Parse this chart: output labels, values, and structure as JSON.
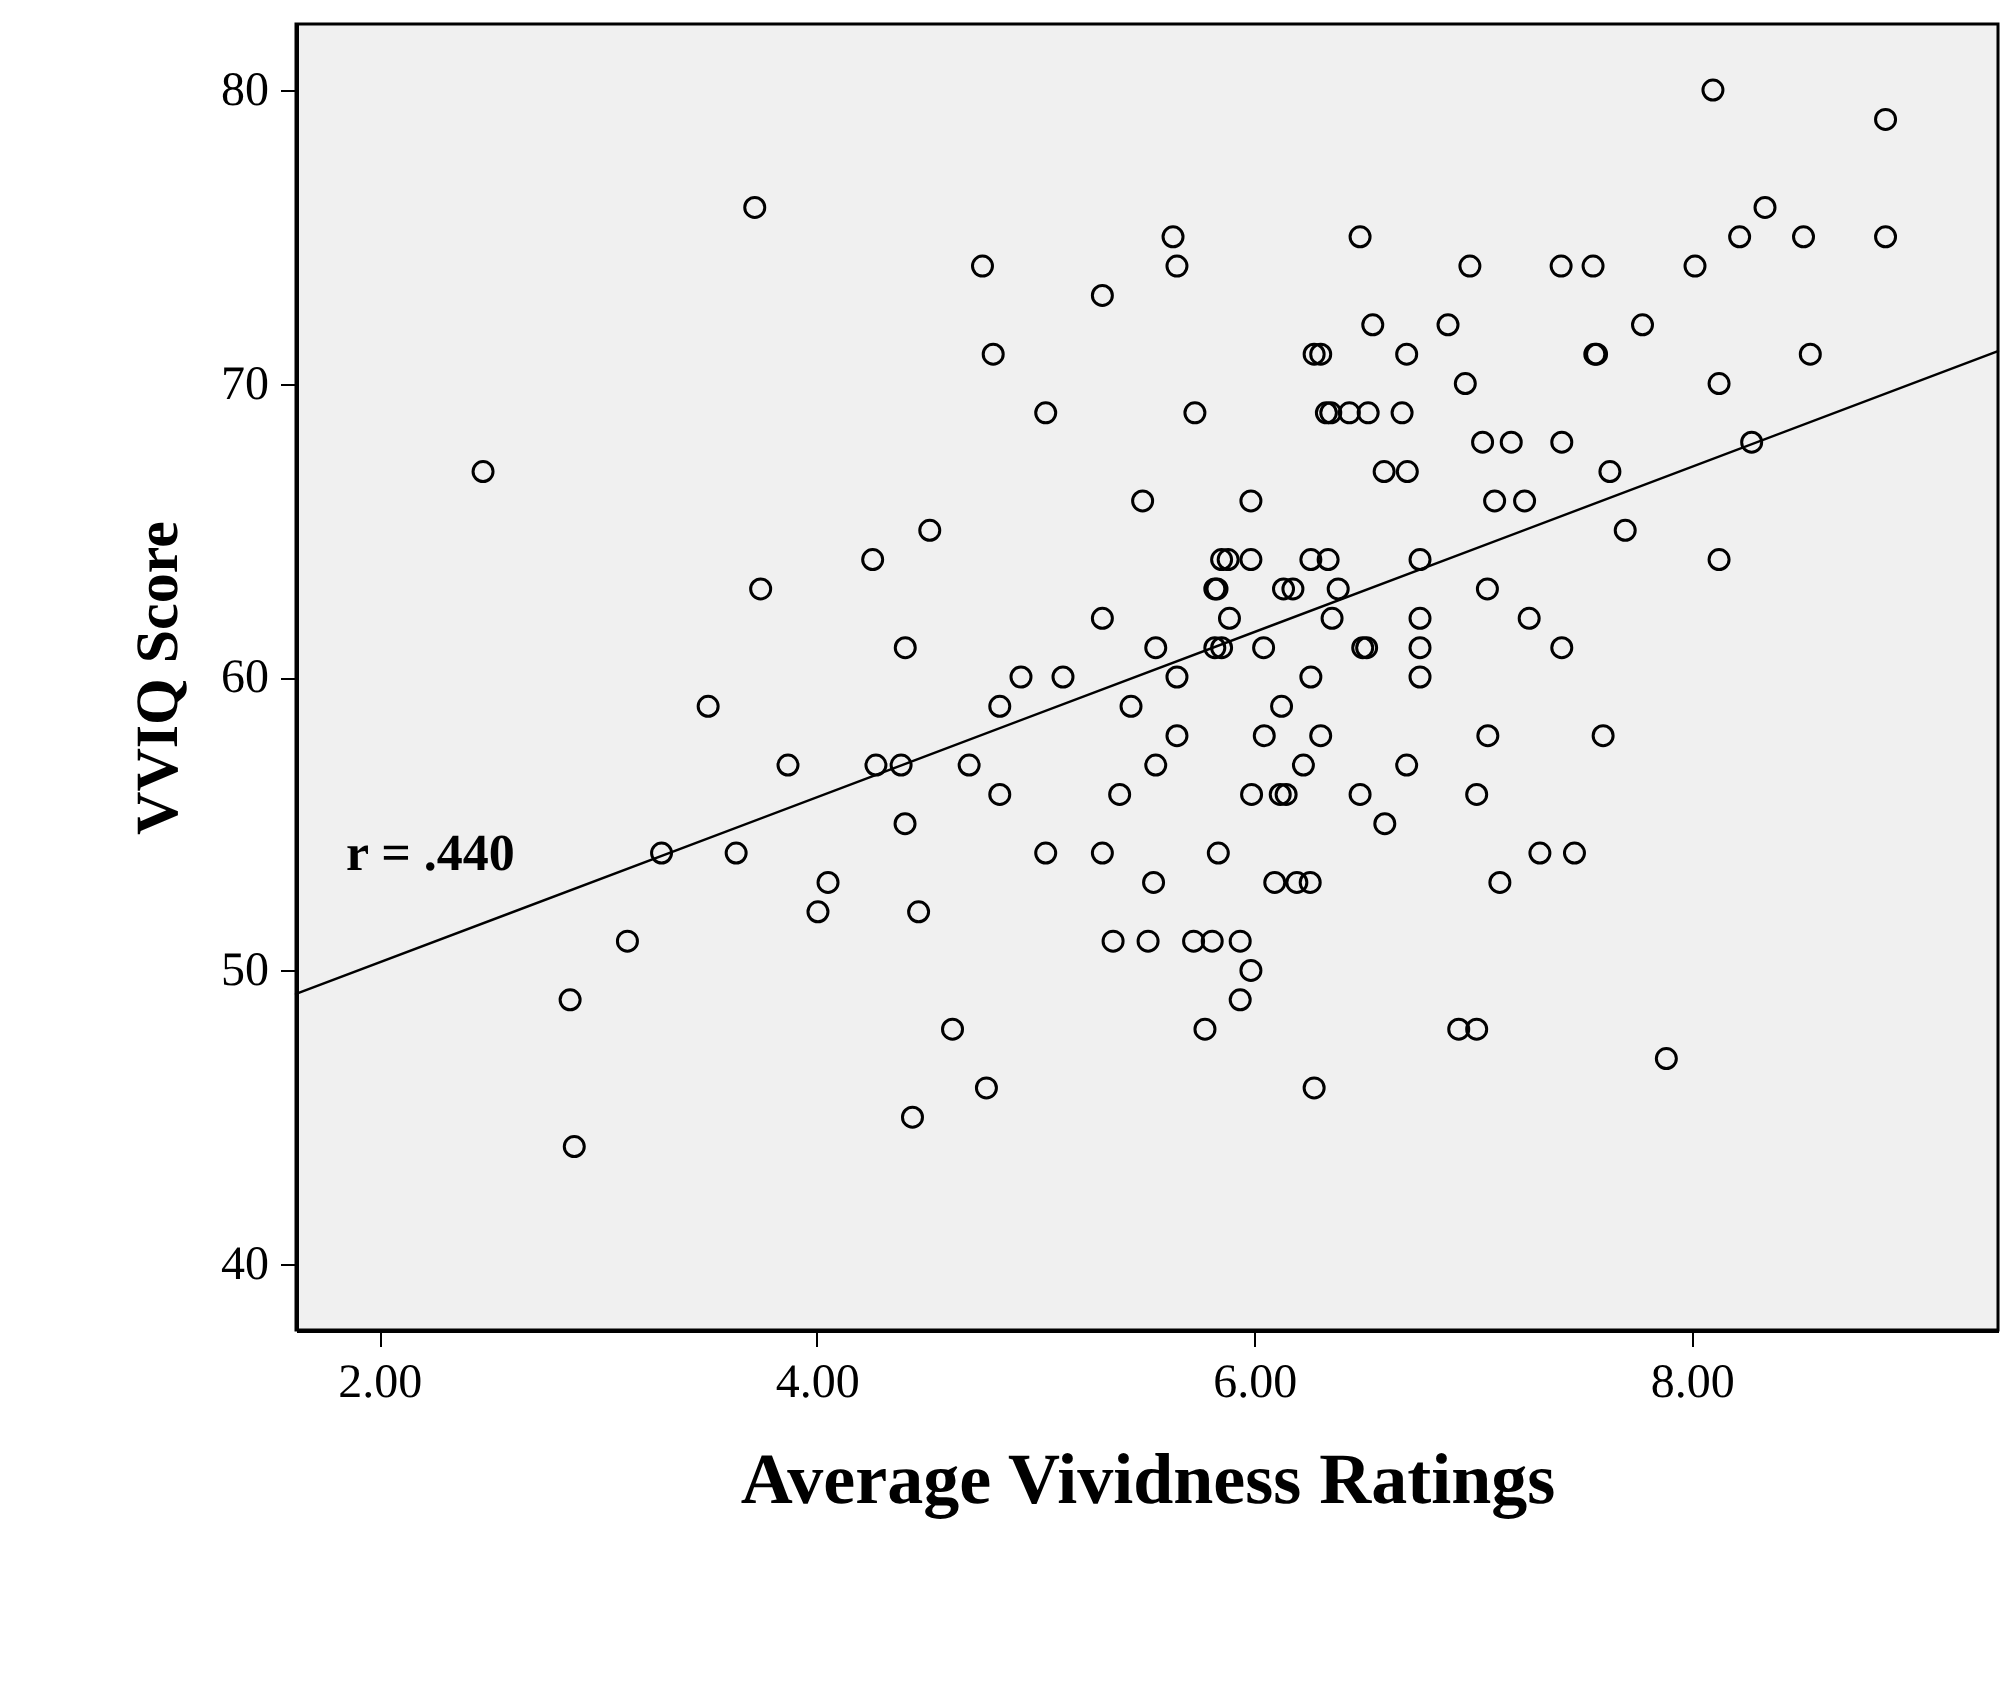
{
  "chart_data": {
    "type": "scatter",
    "xlabel": "Average Vividness Ratings",
    "ylabel": "VVIQ Score",
    "xlim": [
      1.62,
      9.4
    ],
    "ylim": [
      37.75,
      82.25
    ],
    "xticks": [
      {
        "value": 2,
        "label": "2.00"
      },
      {
        "value": 4,
        "label": "4.00"
      },
      {
        "value": 6,
        "label": "6.00"
      },
      {
        "value": 8,
        "label": "8.00"
      }
    ],
    "yticks": [
      40,
      50,
      60,
      70,
      80
    ],
    "grid": false,
    "annotations": [
      "r = .440"
    ],
    "series": [
      {
        "type": "line",
        "color": "#000000",
        "x": [
          1.62,
          9.4
        ],
        "values": [
          49.2,
          71.1
        ]
      },
      {
        "marker": "circle",
        "color": "#000000",
        "x": [
          3.717,
          4.758,
          5.306,
          4.807,
          5.047,
          2.475,
          5.49,
          4.517,
          4.256,
          3.744,
          5.306,
          4.405,
          5.55,
          4.934,
          5.126,
          8.097,
          8.886,
          8.335,
          5.629,
          6.484,
          8.219,
          8.511,
          8.886,
          5.647,
          6.986,
          7.403,
          7.549,
          8.015,
          6.542,
          6.886,
          7.775,
          6.274,
          6.304,
          6.697,
          7.557,
          7.565,
          8.542,
          6.965,
          8.125,
          5.729,
          6.33,
          6.35,
          6.435,
          6.521,
          6.676,
          7.044,
          7.175,
          7.406,
          8.274,
          6.594,
          6.7,
          7.626,
          5.985,
          7.099,
          7.236,
          7.696,
          5.851,
          5.881,
          5.985,
          6.259,
          6.338,
          6.758,
          8.125,
          5.82,
          5.83,
          6.134,
          6.177,
          6.384,
          7.066,
          5.887,
          6.356,
          6.758,
          7.257,
          5.82,
          5.851,
          6.043,
          6.496,
          6.514,
          6.758,
          7.406,
          5.647,
          6.259,
          6.758,
          3.504,
          4.837,
          5.437,
          3.869,
          4.271,
          4.386,
          4.697,
          4.837,
          5.385,
          5.55,
          4.404,
          3.291,
          3.632,
          5.047,
          5.306,
          4.052,
          4.006,
          4.466,
          5.54,
          3.135,
          5.355,
          5.515,
          2.873,
          4.621,
          4.776,
          4.438,
          2.892,
          6.125,
          5.647,
          6.046,
          6.304,
          7.068,
          7.595,
          6.225,
          6.697,
          5.988,
          6.119,
          6.146,
          6.484,
          7.017,
          6.597,
          5.836,
          7.306,
          7.464,
          6.094,
          6.195,
          6.256,
          7.123,
          5.723,
          5.808,
          5.936,
          5.985,
          5.936,
          5.775,
          6.935,
          7.017,
          7.884,
          6.274
        ],
        "values": [
          76,
          74,
          73,
          71,
          69,
          67,
          66,
          65,
          64,
          63,
          62,
          61,
          61,
          60,
          60,
          80,
          79,
          76,
          75,
          75,
          75,
          75,
          75,
          74,
          74,
          74,
          74,
          74,
          72,
          72,
          72,
          71,
          71,
          71,
          71,
          71,
          71,
          70,
          70,
          69,
          69,
          69,
          69,
          69,
          69,
          68,
          68,
          68,
          68,
          67,
          67,
          67,
          66,
          66,
          66,
          65,
          64,
          64,
          64,
          64,
          64,
          64,
          64,
          63,
          63,
          63,
          63,
          63,
          63,
          62,
          62,
          62,
          62,
          61,
          61,
          61,
          61,
          61,
          61,
          61,
          60,
          60,
          60,
          59,
          59,
          59,
          57,
          57,
          57,
          57,
          56,
          56,
          57,
          55,
          54,
          54,
          54,
          54,
          53,
          52,
          52,
          53,
          51,
          51,
          51,
          49,
          48,
          46,
          45,
          44,
          59,
          58,
          58,
          58,
          58,
          58,
          57,
          57,
          56,
          56,
          56,
          56,
          56,
          55,
          54,
          54,
          54,
          53,
          53,
          53,
          53,
          51,
          51,
          51,
          50,
          49,
          48,
          48,
          48,
          47,
          46
        ]
      }
    ]
  }
}
